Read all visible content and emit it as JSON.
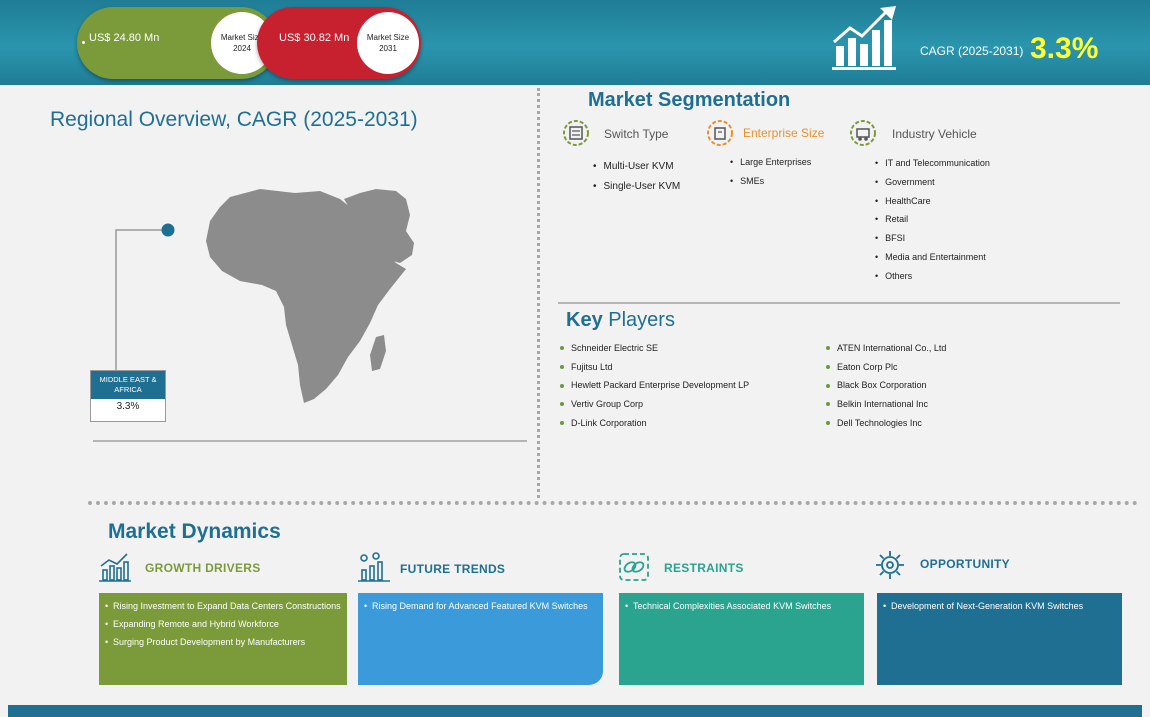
{
  "header": {
    "market_2024": {
      "value": "US$ 24.80 Mn",
      "label_line1": "Market Size",
      "label_line2": "2024",
      "color": "#7b9b3a"
    },
    "market_2031": {
      "value": "US$ 30.82 Mn",
      "label_line1": "Market Size",
      "label_line2": "2031",
      "color": "#c7202f"
    },
    "cagr_label": "CAGR (2025-2031)",
    "cagr_value": "3.3%",
    "growth_icon": "bar-growth-arrow-icon"
  },
  "regional": {
    "title": "Regional Overview, CAGR (2025-2031)",
    "region_line1": "MIDDLE EAST &",
    "region_line2": "AFRICA",
    "region_cagr": "3.3%",
    "map_icon": "africa-middle-east-map"
  },
  "segmentation": {
    "title": "Market Segmentation",
    "groups": [
      {
        "heading": "Switch Type",
        "items": [
          "Multi-User KVM",
          "Single-User KVM"
        ]
      },
      {
        "heading": "Enterprise Size",
        "items": [
          "Large Enterprises",
          "SMEs"
        ]
      },
      {
        "heading": "Industry Vehicle",
        "items": [
          "IT and Telecommunication",
          "Government",
          "HealthCare",
          "Retail",
          "BFSI",
          "Media and Entertainment",
          "Others"
        ]
      }
    ],
    "highlight_color": "#e8912d"
  },
  "key_players": {
    "title_bold": "Key",
    "title_rest": " Players",
    "left": [
      "Schneider Electric SE",
      "Fujitsu Ltd",
      "Hewlett Packard Enterprise Development LP",
      "Vertiv Group Corp",
      "D-Link Corporation"
    ],
    "right": [
      "ATEN International Co., Ltd",
      "Eaton Corp Plc",
      "Black Box Corporation",
      "Belkin International Inc",
      "Dell Technologies Inc"
    ]
  },
  "dynamics": {
    "title": "Market Dynamics",
    "cards": [
      {
        "heading": "GROWTH DRIVERS",
        "icon": "growth-chart-icon",
        "color": "#7b9b3a",
        "items": [
          "Rising Investment to Expand Data Centers Constructions",
          "Expanding Remote and Hybrid Workforce",
          "Surging Product Development by Manufacturers"
        ]
      },
      {
        "heading": "FUTURE TRENDS",
        "icon": "trend-chart-icon",
        "color": "#3b9ad9",
        "items": [
          "Rising Demand for Advanced Featured KVM Switches"
        ]
      },
      {
        "heading": "RESTRAINTS",
        "icon": "chain-link-icon",
        "color": "#2aa38f",
        "items": [
          "Technical Complexities Associated KVM Switches"
        ]
      },
      {
        "heading": "OPPORTUNITY",
        "icon": "gear-target-icon",
        "color": "#1f6f93",
        "items": [
          "Development of Next-Generation KVM Switches"
        ]
      }
    ]
  }
}
